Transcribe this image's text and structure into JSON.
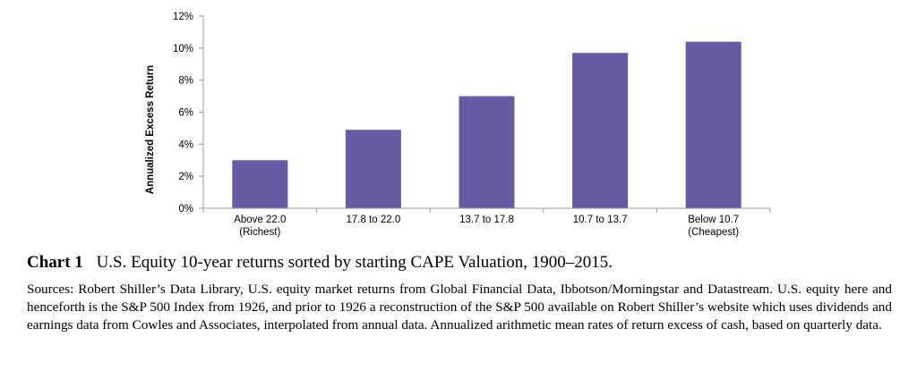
{
  "chart_data": {
    "type": "bar",
    "categories": [
      [
        "Above 22.0",
        "(Richest)"
      ],
      [
        "17.8 to 22.0"
      ],
      [
        "13.7 to 17.8"
      ],
      [
        "10.7 to 13.7"
      ],
      [
        "Below 10.7",
        "(Cheapest)"
      ]
    ],
    "values": [
      3.0,
      4.9,
      7.0,
      9.7,
      10.4
    ],
    "ylabel": "Annualized Excess Return",
    "xlabel": "",
    "ylim": [
      0,
      12
    ],
    "yticks": [
      0,
      2,
      4,
      6,
      8,
      10,
      12
    ],
    "ytick_format": "percent",
    "grid": false,
    "bar_color": "#665BA5",
    "axis_color": "#9A9A9A"
  },
  "caption": {
    "label": "Chart 1",
    "text": "U.S. Equity 10-year returns sorted by starting CAPE Valuation, 1900–2015."
  },
  "sources": "Sources: Robert Shiller’s Data Library, U.S. equity market returns from Global Financial Data, Ibbotson/Morningstar and Datastream. U.S. equity here and henceforth is the S&P 500 Index from 1926, and prior to 1926 a reconstruction of the S&P 500 available on Robert Shiller’s website which uses dividends and earnings data from Cowles and Associates, interpolated from annual data. Annualized arithmetic mean rates of return excess of cash, based on quarterly data."
}
